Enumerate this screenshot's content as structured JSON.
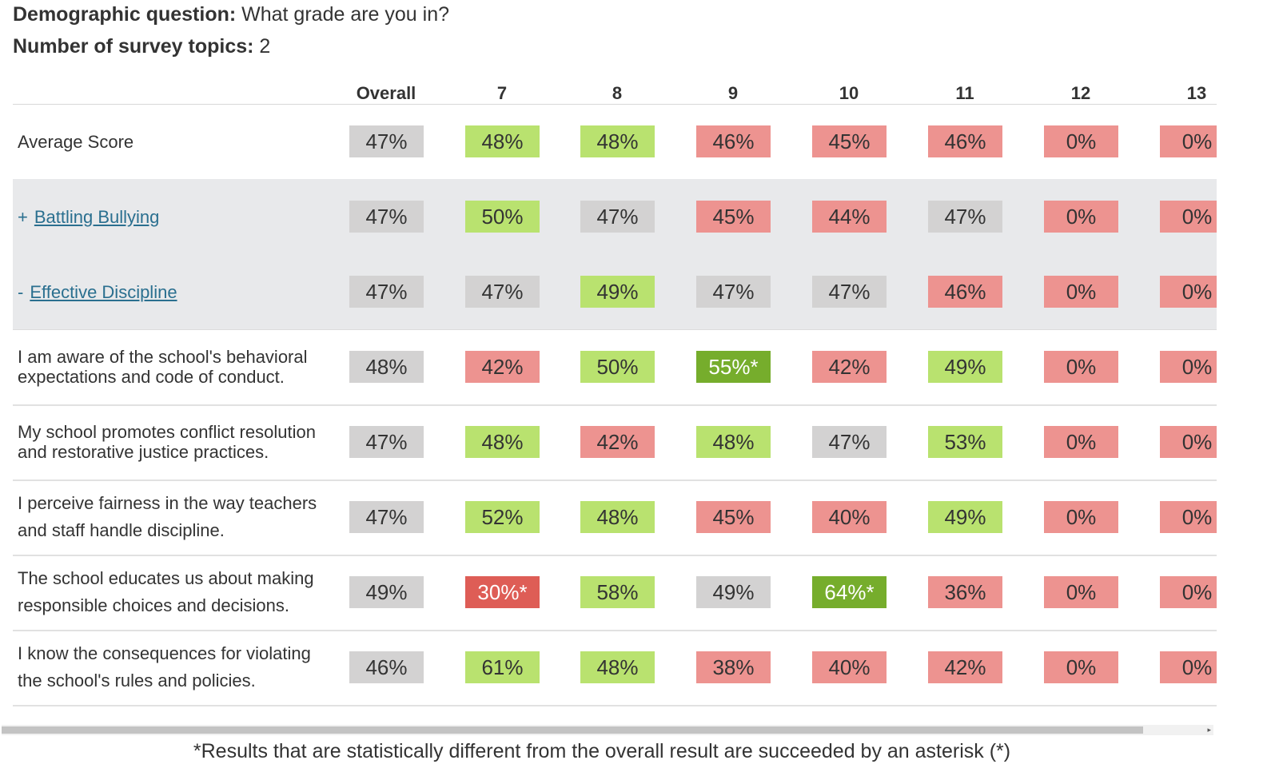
{
  "header": {
    "demographic_label": "Demographic question:",
    "demographic_value": "What grade are you in?",
    "topics_label": "Number of survey topics:",
    "topics_value": "2"
  },
  "table": {
    "columns": [
      "Overall",
      "7",
      "8",
      "9",
      "10",
      "11",
      "12",
      "13"
    ],
    "rows": [
      {
        "kind": "summary",
        "prefix": "",
        "label": "Average Score",
        "cells": [
          {
            "v": "47%",
            "c": "gray"
          },
          {
            "v": "48%",
            "c": "lgreen"
          },
          {
            "v": "48%",
            "c": "lgreen"
          },
          {
            "v": "46%",
            "c": "pink"
          },
          {
            "v": "45%",
            "c": "pink"
          },
          {
            "v": "46%",
            "c": "pink"
          },
          {
            "v": "0%",
            "c": "pink"
          },
          {
            "v": "0%",
            "c": "pink"
          }
        ]
      },
      {
        "kind": "topic",
        "prefix": "+",
        "label": "Battling Bullying",
        "cells": [
          {
            "v": "47%",
            "c": "gray"
          },
          {
            "v": "50%",
            "c": "lgreen"
          },
          {
            "v": "47%",
            "c": "gray"
          },
          {
            "v": "45%",
            "c": "pink"
          },
          {
            "v": "44%",
            "c": "pink"
          },
          {
            "v": "47%",
            "c": "gray"
          },
          {
            "v": "0%",
            "c": "pink"
          },
          {
            "v": "0%",
            "c": "pink"
          }
        ]
      },
      {
        "kind": "topic",
        "prefix": "-",
        "label": "Effective Discipline",
        "cells": [
          {
            "v": "47%",
            "c": "gray"
          },
          {
            "v": "47%",
            "c": "gray"
          },
          {
            "v": "49%",
            "c": "lgreen"
          },
          {
            "v": "47%",
            "c": "gray"
          },
          {
            "v": "47%",
            "c": "gray"
          },
          {
            "v": "46%",
            "c": "pink"
          },
          {
            "v": "0%",
            "c": "pink"
          },
          {
            "v": "0%",
            "c": "pink"
          }
        ]
      },
      {
        "kind": "question",
        "prefix": "",
        "label": "I am aware of the school's behavioral expectations and code of conduct.",
        "cells": [
          {
            "v": "48%",
            "c": "gray"
          },
          {
            "v": "42%",
            "c": "pink"
          },
          {
            "v": "50%",
            "c": "lgreen"
          },
          {
            "v": "55%*",
            "c": "dgreen"
          },
          {
            "v": "42%",
            "c": "pink"
          },
          {
            "v": "49%",
            "c": "lgreen"
          },
          {
            "v": "0%",
            "c": "pink"
          },
          {
            "v": "0%",
            "c": "pink"
          }
        ]
      },
      {
        "kind": "question",
        "prefix": "",
        "label": "My school promotes conflict resolution and restorative justice practices.",
        "cells": [
          {
            "v": "47%",
            "c": "gray"
          },
          {
            "v": "48%",
            "c": "lgreen"
          },
          {
            "v": "42%",
            "c": "pink"
          },
          {
            "v": "48%",
            "c": "lgreen"
          },
          {
            "v": "47%",
            "c": "gray"
          },
          {
            "v": "53%",
            "c": "lgreen"
          },
          {
            "v": "0%",
            "c": "pink"
          },
          {
            "v": "0%",
            "c": "pink"
          }
        ]
      },
      {
        "kind": "question",
        "prefix": "",
        "label": "I perceive fairness in the way teachers and staff handle discipline.",
        "cells": [
          {
            "v": "47%",
            "c": "gray"
          },
          {
            "v": "52%",
            "c": "lgreen"
          },
          {
            "v": "48%",
            "c": "lgreen"
          },
          {
            "v": "45%",
            "c": "pink"
          },
          {
            "v": "40%",
            "c": "pink"
          },
          {
            "v": "49%",
            "c": "lgreen"
          },
          {
            "v": "0%",
            "c": "pink"
          },
          {
            "v": "0%",
            "c": "pink"
          }
        ]
      },
      {
        "kind": "question",
        "prefix": "",
        "label": "The school educates us about making responsible choices and decisions.",
        "cells": [
          {
            "v": "49%",
            "c": "gray"
          },
          {
            "v": "30%*",
            "c": "red"
          },
          {
            "v": "58%",
            "c": "lgreen"
          },
          {
            "v": "49%",
            "c": "gray"
          },
          {
            "v": "64%*",
            "c": "dgreen"
          },
          {
            "v": "36%",
            "c": "pink"
          },
          {
            "v": "0%",
            "c": "pink"
          },
          {
            "v": "0%",
            "c": "pink"
          }
        ]
      },
      {
        "kind": "question",
        "prefix": "",
        "label": "I know the consequences for violating the school's rules and policies.",
        "cells": [
          {
            "v": "46%",
            "c": "gray"
          },
          {
            "v": "61%",
            "c": "lgreen"
          },
          {
            "v": "48%",
            "c": "lgreen"
          },
          {
            "v": "38%",
            "c": "pink"
          },
          {
            "v": "40%",
            "c": "pink"
          },
          {
            "v": "42%",
            "c": "pink"
          },
          {
            "v": "0%",
            "c": "pink"
          },
          {
            "v": "0%",
            "c": "pink"
          }
        ]
      }
    ]
  },
  "footnote": "*Results that are statistically different from the overall result are succeeded by an asterisk (*)",
  "colors": {
    "gray": "#d3d2d2",
    "lgreen": "#b9e26f",
    "dgreen": "#76ad2c",
    "pink": "#ed9390",
    "red": "#de5d56",
    "link": "#2a6f8f",
    "topic_bg": "#e8e9eb"
  }
}
